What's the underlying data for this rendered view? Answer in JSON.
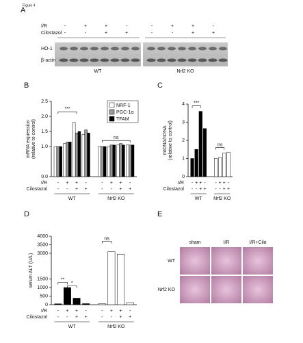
{
  "figure_label": "Figure 4",
  "panel_a": {
    "label": "A",
    "rows": [
      {
        "label": "I/R",
        "signs": [
          "-",
          "+",
          "+",
          "-",
          "-",
          "+",
          "+",
          "-"
        ]
      },
      {
        "label": "Cilostazol",
        "signs": [
          "-",
          "-",
          "+",
          "+",
          "-",
          "-",
          "+",
          "+"
        ]
      }
    ],
    "bands": [
      "HO-1",
      "β-actin"
    ],
    "groups": [
      "WT",
      "Nrf2 KO"
    ]
  },
  "chart_data": [
    {
      "type": "bar",
      "panel": "B",
      "ylabel": "mRNA expression\n(relative to control)",
      "categories": [
        null,
        null,
        null,
        null,
        null,
        null,
        null,
        null
      ],
      "series": [
        {
          "name": "NRF-1",
          "color": "#ffffff",
          "values": [
            1.0,
            1.1,
            1.8,
            1.4,
            1.0,
            1.0,
            1.05,
            1.05
          ]
        },
        {
          "name": "PGC-1α",
          "color": "#999999",
          "values": [
            1.0,
            1.15,
            1.45,
            1.55,
            1.0,
            1.05,
            1.1,
            1.05
          ]
        },
        {
          "name": "TFAM",
          "color": "#000000",
          "values": [
            1.0,
            1.15,
            1.5,
            1.45,
            1.0,
            1.05,
            1.05,
            1.05
          ]
        }
      ],
      "ylim": [
        0,
        2.5
      ],
      "yticks": [
        {
          "value": 0,
          "label": "0.0"
        },
        {
          "value": 1,
          "label": "1.0"
        },
        1.5,
        {
          "value": 2,
          "label": "2.0"
        },
        2.5
      ],
      "legend": "upper right",
      "annotations": [
        "***",
        "ns"
      ],
      "conditions": [
        {
          "label": "I/R",
          "signs": [
            "-",
            "+",
            "+",
            "-",
            "-",
            "+",
            "+",
            "-"
          ]
        },
        {
          "label": "Cilostazol",
          "signs": [
            "-",
            "-",
            "+",
            "+",
            "-",
            "-",
            "+",
            "+"
          ]
        }
      ],
      "groups": [
        "WT",
        "Nrf2 KO"
      ]
    },
    {
      "type": "bar",
      "panel": "C",
      "ylabel": "mtDNA/nDNA\n(relative to control)",
      "categories": [
        null,
        null,
        null,
        null,
        null,
        null,
        null,
        null
      ],
      "values": [
        1.0,
        1.5,
        3.6,
        2.65,
        1.0,
        1.05,
        1.3,
        1.35
      ],
      "colors": [
        "#000000",
        "#000000",
        "#000000",
        "#000000",
        "#ffffff",
        "#ffffff",
        "#ffffff",
        "#ffffff"
      ],
      "ylim": [
        0,
        4
      ],
      "yticks": [
        0,
        1,
        2,
        3,
        4
      ],
      "annotations": [
        "***",
        "ns"
      ],
      "conditions": [
        {
          "label": "I/R",
          "signs": [
            "-",
            "+",
            "+",
            "-",
            "-",
            "+",
            "+",
            "-"
          ]
        },
        {
          "label": "Cilostazol",
          "signs": [
            "-",
            "-",
            "+",
            "+",
            "-",
            "-",
            "+",
            "+"
          ]
        }
      ],
      "groups": [
        "WT",
        "Nrf2 KO"
      ]
    },
    {
      "type": "bar",
      "panel": "D",
      "ylabel": "serum ALT (U/L)",
      "categories": [
        null,
        null,
        null,
        null,
        null,
        null,
        null,
        null
      ],
      "values": [
        50,
        1000,
        380,
        60,
        60,
        3100,
        2950,
        120
      ],
      "colors": [
        "#000000",
        "#000000",
        "#000000",
        "#000000",
        "#ffffff",
        "#ffffff",
        "#ffffff",
        "#ffffff"
      ],
      "ylim": [
        0,
        4000
      ],
      "yticks": [
        0,
        500,
        1000,
        1500,
        3000,
        3500,
        4000
      ],
      "annotations": [
        "**",
        "*",
        "ns"
      ],
      "conditions": [
        {
          "label": "I/R",
          "signs": [
            "-",
            "+",
            "+",
            "-",
            "-",
            "+",
            "+",
            "-"
          ]
        },
        {
          "label": "Cilostazol",
          "signs": [
            "-",
            "-",
            "+",
            "+",
            "-",
            "-",
            "+",
            "+"
          ]
        }
      ],
      "groups": [
        "WT",
        "Nrf2 KO"
      ]
    }
  ],
  "panel_e": {
    "label": "E",
    "columns": [
      "sham",
      "I/R",
      "I/R+Cilo"
    ],
    "rows": [
      "WT",
      "Nrf2 KO"
    ]
  }
}
